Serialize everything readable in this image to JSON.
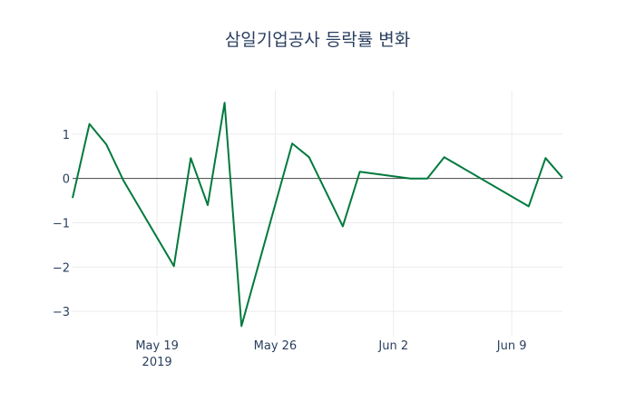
{
  "chart_data": {
    "type": "line",
    "title": "삼일기업공사 등락률 변화",
    "xlabel": "",
    "ylabel": "",
    "x": [
      "2019-05-14",
      "2019-05-15",
      "2019-05-16",
      "2019-05-17",
      "2019-05-20",
      "2019-05-21",
      "2019-05-22",
      "2019-05-23",
      "2019-05-24",
      "2019-05-27",
      "2019-05-28",
      "2019-05-30",
      "2019-05-31",
      "2019-06-03",
      "2019-06-04",
      "2019-06-05",
      "2019-06-10",
      "2019-06-11",
      "2019-06-12"
    ],
    "series": [
      {
        "name": "등락률",
        "color": "#007a3d",
        "values": [
          -0.44,
          1.23,
          0.77,
          -0.04,
          -1.98,
          0.46,
          -0.6,
          1.71,
          -3.33,
          0.79,
          0.48,
          -1.08,
          0.15,
          0.0,
          0.0,
          0.48,
          -0.63,
          0.46,
          0.02
        ]
      }
    ],
    "xlim": [
      "2019-05-14",
      "2019-06-12"
    ],
    "ylim": [
      -3.55,
      1.98
    ],
    "x_ticks": [
      {
        "date": "2019-05-19",
        "label": "May 19",
        "sublabel": "2019"
      },
      {
        "date": "2019-05-26",
        "label": "May 26"
      },
      {
        "date": "2019-06-02",
        "label": "Jun 2"
      },
      {
        "date": "2019-06-09",
        "label": "Jun 9"
      }
    ],
    "y_ticks": [
      {
        "value": 1,
        "label": "1"
      },
      {
        "value": 0,
        "label": "0"
      },
      {
        "value": -1,
        "label": "−1"
      },
      {
        "value": -2,
        "label": "−2"
      },
      {
        "value": -3,
        "label": "−3"
      }
    ],
    "grid": true,
    "legend": "none"
  }
}
